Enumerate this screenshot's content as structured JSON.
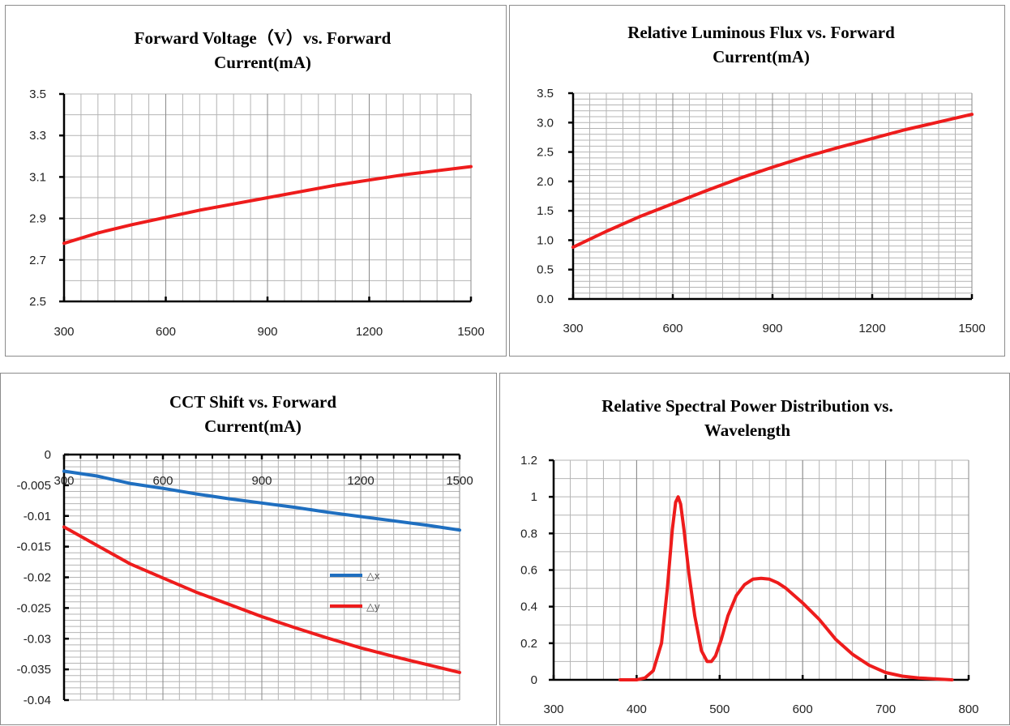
{
  "colors": {
    "red": "#ee1c1c",
    "blue": "#1f6fc0",
    "grid": "#b4b4b4",
    "axis": "#000000"
  },
  "chart_data": [
    {
      "type": "line",
      "title_lines": [
        "Forward Voltage（V）vs. Forward",
        "Current(mA)"
      ],
      "xlabel": "",
      "ylabel": "",
      "xlim": [
        300,
        1500
      ],
      "ylim": [
        2.5,
        3.5
      ],
      "xticks": [
        "300",
        "600",
        "900",
        "1200",
        "1500"
      ],
      "yticks": [
        "2.5",
        "2.7",
        "2.9",
        "3.1",
        "3.3",
        "3.5"
      ],
      "grid": true,
      "series": [
        {
          "color": "#ee1c1c",
          "x": [
            300,
            400,
            500,
            600,
            700,
            800,
            900,
            1000,
            1100,
            1200,
            1300,
            1400,
            1500
          ],
          "y": [
            2.78,
            2.83,
            2.87,
            2.905,
            2.94,
            2.97,
            3.0,
            3.03,
            3.06,
            3.085,
            3.11,
            3.13,
            3.15
          ]
        }
      ]
    },
    {
      "type": "line",
      "title_lines": [
        "Relative Luminous Flux vs. Forward",
        "Current(mA)"
      ],
      "xlabel": "",
      "ylabel": "",
      "xlim": [
        300,
        1500
      ],
      "ylim": [
        0.0,
        3.5
      ],
      "xticks": [
        "300",
        "600",
        "900",
        "1200",
        "1500"
      ],
      "yticks": [
        "0.0",
        "0.5",
        "1.0",
        "1.5",
        "2.0",
        "2.5",
        "3.0",
        "3.5"
      ],
      "grid": true,
      "series": [
        {
          "color": "#ee1c1c",
          "x": [
            300,
            400,
            500,
            600,
            700,
            800,
            900,
            1000,
            1100,
            1200,
            1300,
            1400,
            1500
          ],
          "y": [
            0.88,
            1.15,
            1.4,
            1.62,
            1.84,
            2.05,
            2.24,
            2.42,
            2.58,
            2.73,
            2.88,
            3.01,
            3.14
          ]
        }
      ]
    },
    {
      "type": "line",
      "title_lines": [
        "CCT Shift vs. Forward",
        "Current(mA)"
      ],
      "xlabel": "",
      "ylabel": "",
      "xlim": [
        300,
        1500
      ],
      "ylim": [
        -0.04,
        0
      ],
      "xticks": [
        "300",
        "600",
        "900",
        "1200",
        "1500"
      ],
      "yticks": [
        "-0.04",
        "-0.035",
        "-0.03",
        "-0.025",
        "-0.02",
        "-0.015",
        "-0.01",
        "-0.005",
        "0"
      ],
      "grid": true,
      "legend": "right",
      "series": [
        {
          "name": "△x",
          "color": "#1f6fc0",
          "x": [
            300,
            400,
            500,
            600,
            700,
            800,
            900,
            1000,
            1100,
            1200,
            1300,
            1400,
            1500
          ],
          "y": [
            -0.0027,
            -0.0035,
            -0.0047,
            -0.0055,
            -0.0064,
            -0.0072,
            -0.0079,
            -0.0086,
            -0.0094,
            -0.0101,
            -0.0108,
            -0.0115,
            -0.0123
          ]
        },
        {
          "name": "△y",
          "color": "#ee1c1c",
          "x": [
            300,
            400,
            500,
            600,
            700,
            800,
            900,
            1000,
            1100,
            1200,
            1300,
            1400,
            1500
          ],
          "y": [
            -0.0118,
            -0.0148,
            -0.0178,
            -0.0201,
            -0.0224,
            -0.0244,
            -0.0264,
            -0.0282,
            -0.0299,
            -0.0315,
            -0.0329,
            -0.0342,
            -0.0355
          ]
        }
      ]
    },
    {
      "type": "line",
      "title_lines": [
        "Relative Spectral Power Distribution vs.",
        "Wavelength"
      ],
      "xlabel": "",
      "ylabel": "",
      "xlim": [
        300,
        800
      ],
      "ylim": [
        0,
        1.2
      ],
      "xticks": [
        "300",
        "400",
        "500",
        "600",
        "700",
        "800"
      ],
      "yticks": [
        "0",
        "0.2",
        "0.4",
        "0.6",
        "0.8",
        "1",
        "1.2"
      ],
      "grid": true,
      "series": [
        {
          "color": "#ee1c1c",
          "x": [
            380,
            400,
            410,
            420,
            430,
            437,
            443,
            447,
            450,
            453,
            457,
            463,
            470,
            478,
            485,
            490,
            495,
            502,
            510,
            520,
            530,
            540,
            550,
            560,
            570,
            580,
            600,
            620,
            640,
            660,
            680,
            700,
            720,
            740,
            760,
            780
          ],
          "y": [
            0,
            0,
            0.01,
            0.05,
            0.2,
            0.5,
            0.82,
            0.97,
            1.0,
            0.96,
            0.82,
            0.58,
            0.35,
            0.16,
            0.1,
            0.1,
            0.13,
            0.22,
            0.35,
            0.46,
            0.52,
            0.55,
            0.555,
            0.55,
            0.53,
            0.5,
            0.42,
            0.33,
            0.22,
            0.14,
            0.08,
            0.04,
            0.02,
            0.01,
            0.005,
            0
          ]
        }
      ]
    }
  ]
}
